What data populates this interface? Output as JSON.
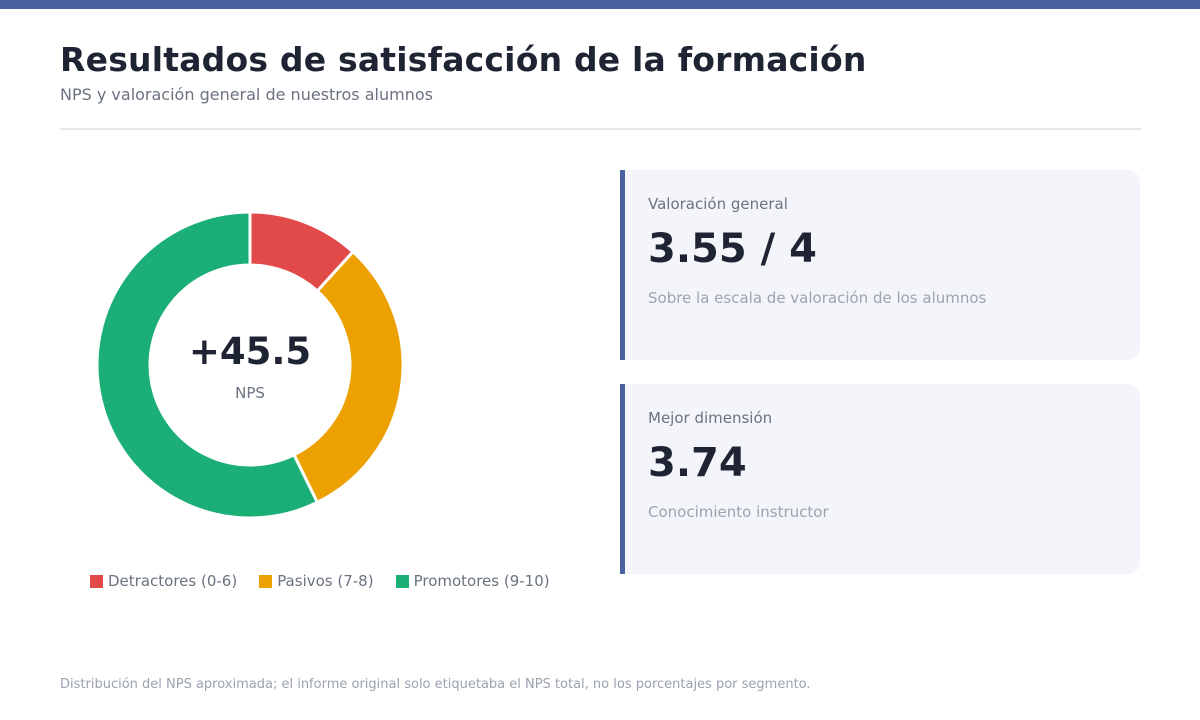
{
  "header": {
    "title": "Resultados de satisfacción de la formación",
    "subtitle": "NPS y valoración general de nuestros alumnos"
  },
  "chart_data": {
    "type": "pie",
    "title": "",
    "donut": true,
    "center_value": "+45.5",
    "center_label": "NPS",
    "legend_position": "bottom",
    "categories": [
      "Detractores (0-6)",
      "Pasivos (7-8)",
      "Promotores (9-10)"
    ],
    "values": [
      11.75,
      31,
      57.25
    ],
    "colors": [
      "#e24a4a",
      "#eda100",
      "#1baf77"
    ]
  },
  "cards": [
    {
      "label": "Valoración general",
      "value": "3.55 / 4",
      "description": "Sobre la escala de valoración de los alumnos"
    },
    {
      "label": "Mejor dimensión",
      "value": "3.74",
      "description": "Conocimiento instructor"
    }
  ],
  "footnote": "Distribución del NPS aproximada; el informe original solo etiquetaba el NPS total, no los porcentajes por segmento.",
  "colors": {
    "accent": "#4a63a0",
    "text_dark": "#1e2433",
    "card_background": "#f4f5fa"
  }
}
